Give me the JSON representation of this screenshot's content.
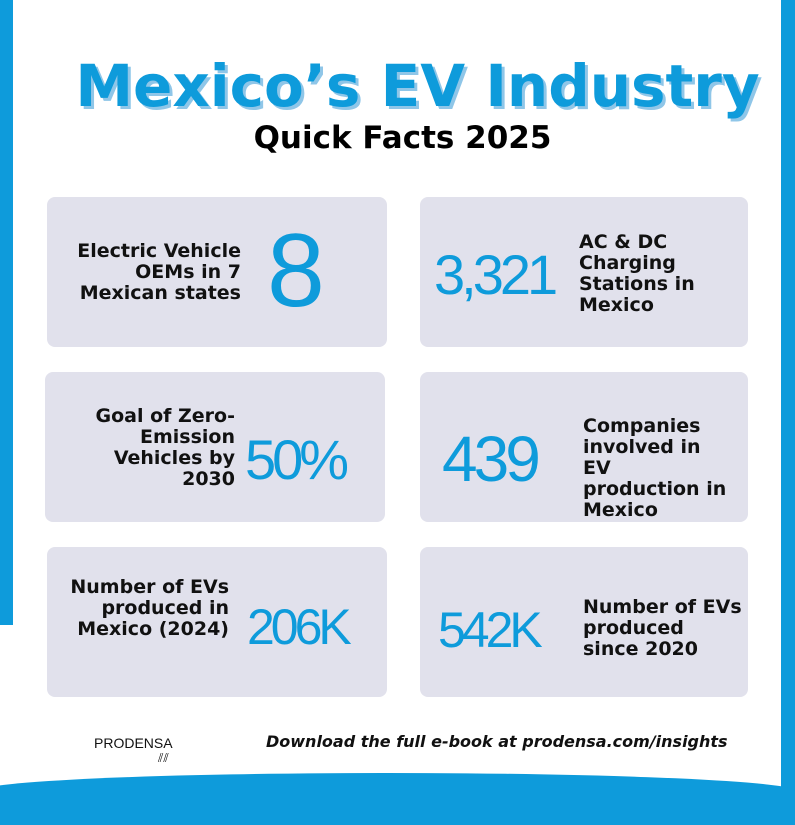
{
  "header": {
    "title": "Mexico’s EV Industry",
    "subtitle": "Quick Facts 2025"
  },
  "facts": [
    {
      "value": "8",
      "label": "Electric Vehicle OEMs in 7 Mexican states"
    },
    {
      "value": "3,321",
      "label": "AC & DC Charging Stations in Mexico"
    },
    {
      "value": "50%",
      "label": "Goal of Zero-Emission Vehicles by 2030"
    },
    {
      "value": "439",
      "label": "Companies involved in EV production in Mexico"
    },
    {
      "value": "206K",
      "label": "Number of EVs produced in Mexico (2024)"
    },
    {
      "value": "542K",
      "label": "Number of EVs produced since 2020"
    }
  ],
  "footer": {
    "logo": "PRODENSA",
    "cta": "Download the full e-book at prodensa.com/insights"
  },
  "colors": {
    "accent": "#0e9bdb",
    "card": "#e1e1ec"
  }
}
